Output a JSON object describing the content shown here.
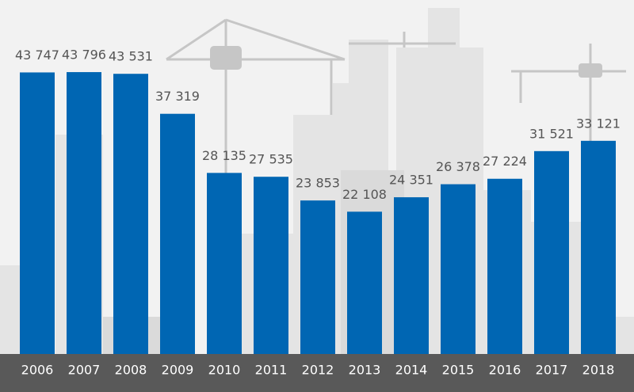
{
  "chart_data": {
    "type": "bar",
    "categories": [
      "2006",
      "2007",
      "2008",
      "2009",
      "2010",
      "2011",
      "2012",
      "2013",
      "2014",
      "2015",
      "2016",
      "2017",
      "2018"
    ],
    "values": [
      43747,
      43796,
      43531,
      37319,
      28135,
      27535,
      23853,
      22108,
      24351,
      26378,
      27224,
      31521,
      33121
    ],
    "value_labels": [
      "43 747",
      "43 796",
      "43 531",
      "37 319",
      "28 135",
      "27 535",
      "23 853",
      "22 108",
      "24 351",
      "26 378",
      "27 224",
      "31 521",
      "33 121"
    ],
    "color": "#0066b3",
    "ylim": [
      0,
      55000
    ]
  }
}
